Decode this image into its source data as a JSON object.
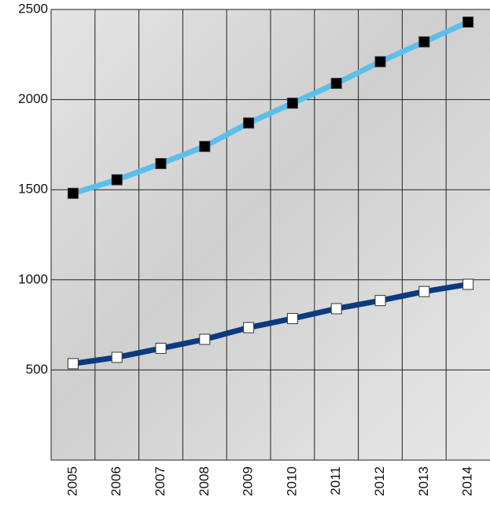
{
  "chart_data": {
    "type": "line",
    "categories": [
      "2005",
      "2006",
      "2007",
      "2008",
      "2009",
      "2010",
      "2011",
      "2012",
      "2013",
      "2014"
    ],
    "series": [
      {
        "color": "#5bbfea",
        "marker_color": "#000000",
        "values": [
          1480,
          1555,
          1645,
          1740,
          1870,
          1980,
          2090,
          2210,
          2320,
          2430
        ]
      },
      {
        "color": "#0b3a7e",
        "marker_color": "#ffffff",
        "values": [
          535,
          570,
          620,
          670,
          735,
          785,
          840,
          885,
          935,
          975
        ]
      }
    ],
    "ylim": [
      0,
      2500
    ],
    "yticks": [
      500,
      1000,
      1500,
      2000,
      2500
    ],
    "grid": true
  }
}
